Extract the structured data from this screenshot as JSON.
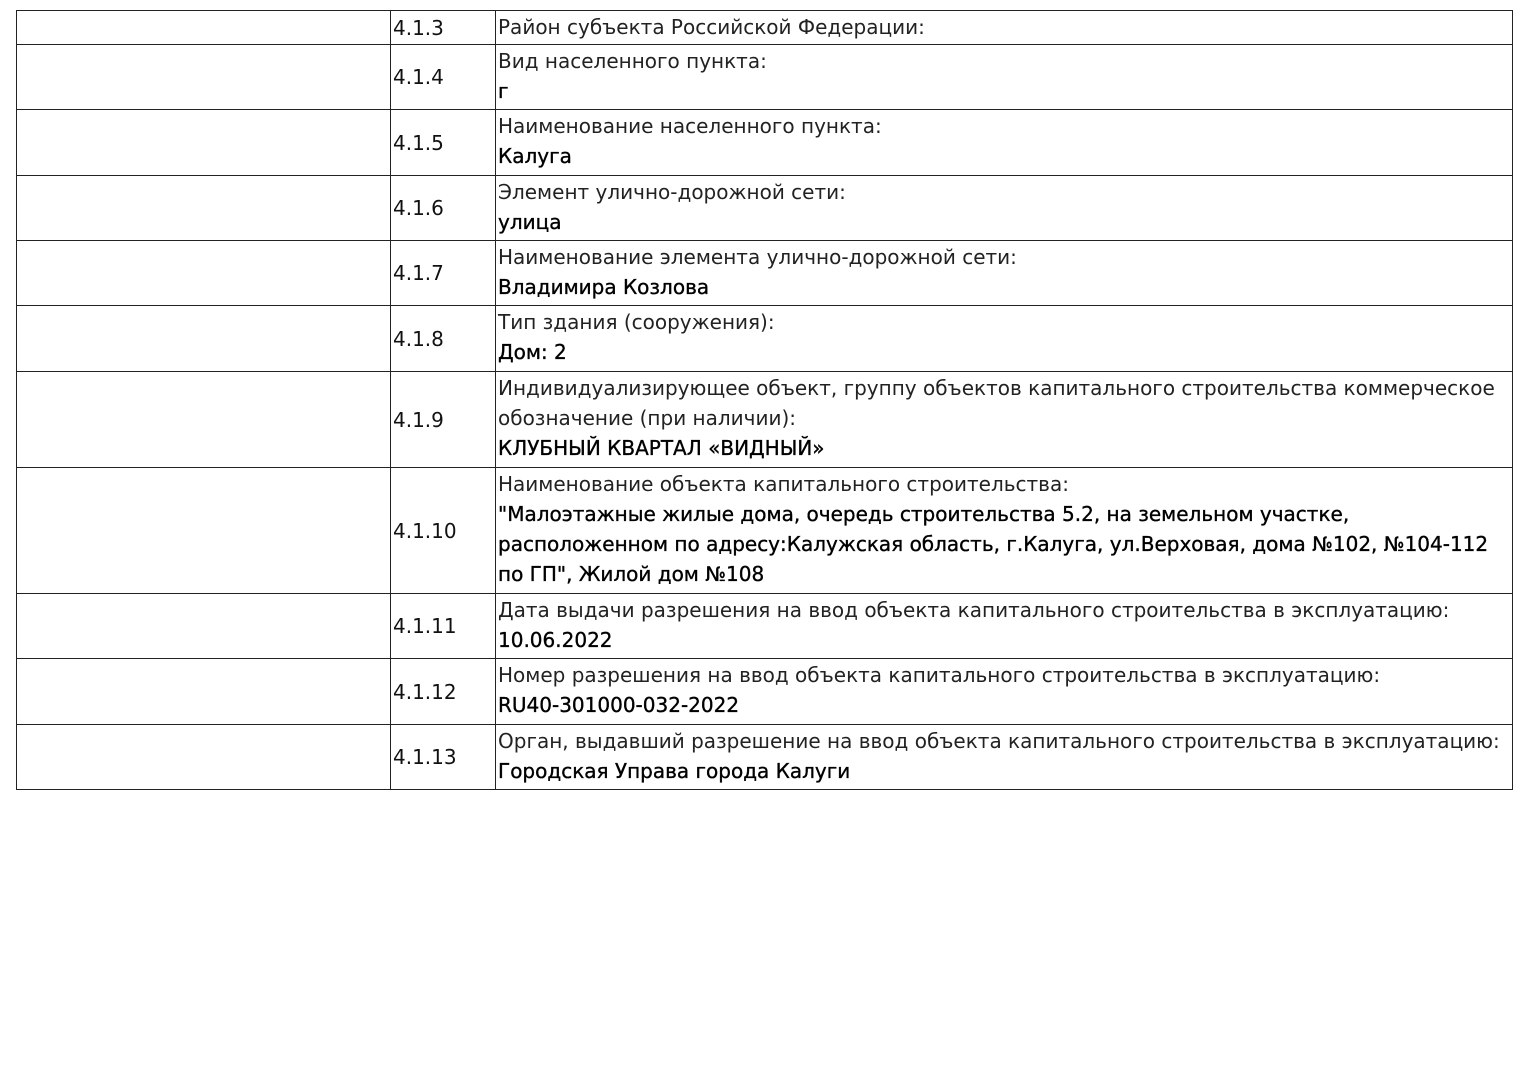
{
  "rows": [
    {
      "num": "4.1.3",
      "label": "Район субъекта Российской Федерации:",
      "value": ""
    },
    {
      "num": "4.1.4",
      "label": "Вид населенного пункта:",
      "value": "г"
    },
    {
      "num": "4.1.5",
      "label": "Наименование населенного пункта:",
      "value": "Калуга"
    },
    {
      "num": "4.1.6",
      "label": "Элемент улично-дорожной сети:",
      "value": "улица"
    },
    {
      "num": "4.1.7",
      "label": "Наименование элемента улично-дорожной сети:",
      "value": "Владимира Козлова"
    },
    {
      "num": "4.1.8",
      "label": "Тип здания (сооружения):",
      "value": "Дом: 2"
    },
    {
      "num": "4.1.9",
      "label": "Индивидуализирующее объект, группу объектов капитального строительства коммерческое обозначение (при наличии):",
      "value": "КЛУБНЫЙ КВАРТАЛ «ВИДНЫЙ»"
    },
    {
      "num": "4.1.10",
      "label": "Наименование объекта капитального строительства:",
      "value": "\"Малоэтажные жилые дома, очередь строительства 5.2, на земельном участке, расположенном по адресу:Калужская область, г.Калуга, ул.Верховая, дома №102, №104-112 по ГП\", Жилой дом №108"
    },
    {
      "num": "4.1.11",
      "label": "Дата выдачи разрешения на ввод объекта капитального строительства в эксплуатацию:",
      "value": "10.06.2022"
    },
    {
      "num": "4.1.12",
      "label": "Номер разрешения на ввод объекта капитального строительства в эксплуатацию:",
      "value": "RU40-301000-032-2022"
    },
    {
      "num": "4.1.13",
      "label": "Орган, выдавший разрешение на ввод объекта капитального строительства в эксплуатацию:",
      "value": "Городская Управа города Калуги"
    }
  ]
}
